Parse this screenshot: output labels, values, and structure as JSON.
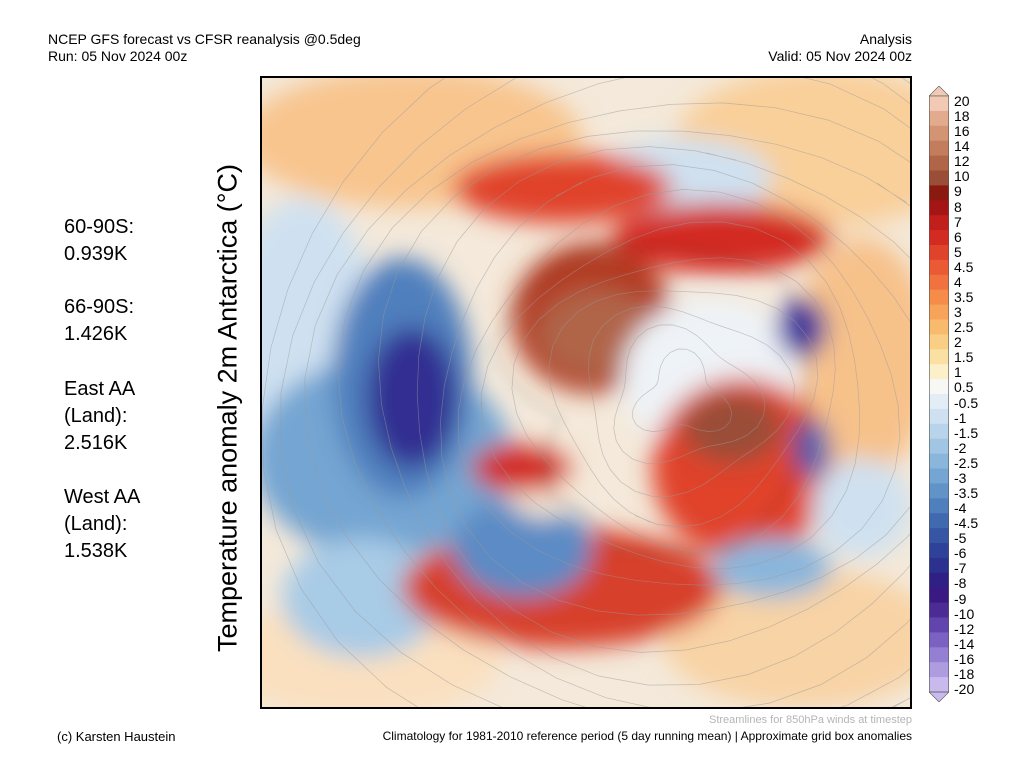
{
  "header": {
    "title": "NCEP GFS forecast vs CFSR reanalysis @0.5deg",
    "run": "Run: 05 Nov 2024 00z",
    "type": "Analysis",
    "valid": "Valid: 05 Nov 2024 00z"
  },
  "axis_label": "Temperature anomaly 2m Antarctica (°C)",
  "stats": [
    {
      "lines": [
        "60-90S:",
        "0.939K"
      ]
    },
    {
      "lines": [
        "66-90S:",
        "1.426K"
      ]
    },
    {
      "lines": [
        "East AA",
        "(Land):",
        "2.516K"
      ]
    },
    {
      "lines": [
        "West AA",
        "(Land):",
        "1.538K"
      ]
    }
  ],
  "colorbar": {
    "labels": [
      "20",
      "18",
      "16",
      "14",
      "12",
      "10",
      "9",
      "8",
      "7",
      "6",
      "5",
      "4.5",
      "4",
      "3.5",
      "3",
      "2.5",
      "2",
      "1.5",
      "1",
      "0.5",
      "-0.5",
      "-1",
      "-1.5",
      "-2",
      "-2.5",
      "-3",
      "-3.5",
      "-4",
      "-4.5",
      "-5",
      "-6",
      "-7",
      "-8",
      "-9",
      "-10",
      "-12",
      "-14",
      "-16",
      "-18",
      "-20"
    ],
    "colors": [
      "#f2c9b4",
      "#e2ab8e",
      "#d39474",
      "#c47d5c",
      "#b06548",
      "#9a4e38",
      "#8a1a10",
      "#a61515",
      "#c01f1c",
      "#d32b22",
      "#e0432c",
      "#ea5a35",
      "#f0723f",
      "#f58c4a",
      "#f7a35a",
      "#f8ba6d",
      "#f9cf85",
      "#fae1a3",
      "#fbf0c9",
      "#f7f7f5",
      "#e3edf6",
      "#cfe1f0",
      "#b8d4ea",
      "#a1c6e3",
      "#8ab6db",
      "#75a5d2",
      "#6293c8",
      "#507fbd",
      "#4169b0",
      "#3656a4",
      "#2f4299",
      "#2c308f",
      "#301f85",
      "#3a1a82",
      "#4d2b95",
      "#6244ad",
      "#7a61c2",
      "#947fd2",
      "#ad9ce0",
      "#c9b9ec"
    ]
  },
  "footer": {
    "streamlines_note": "Streamlines for 850hPa winds at timestep",
    "credit": "(c) Karsten Haustein",
    "climatology": "Climatology for 1981-2010 reference period (5 day running mean) | Approximate grid box anomalies"
  }
}
